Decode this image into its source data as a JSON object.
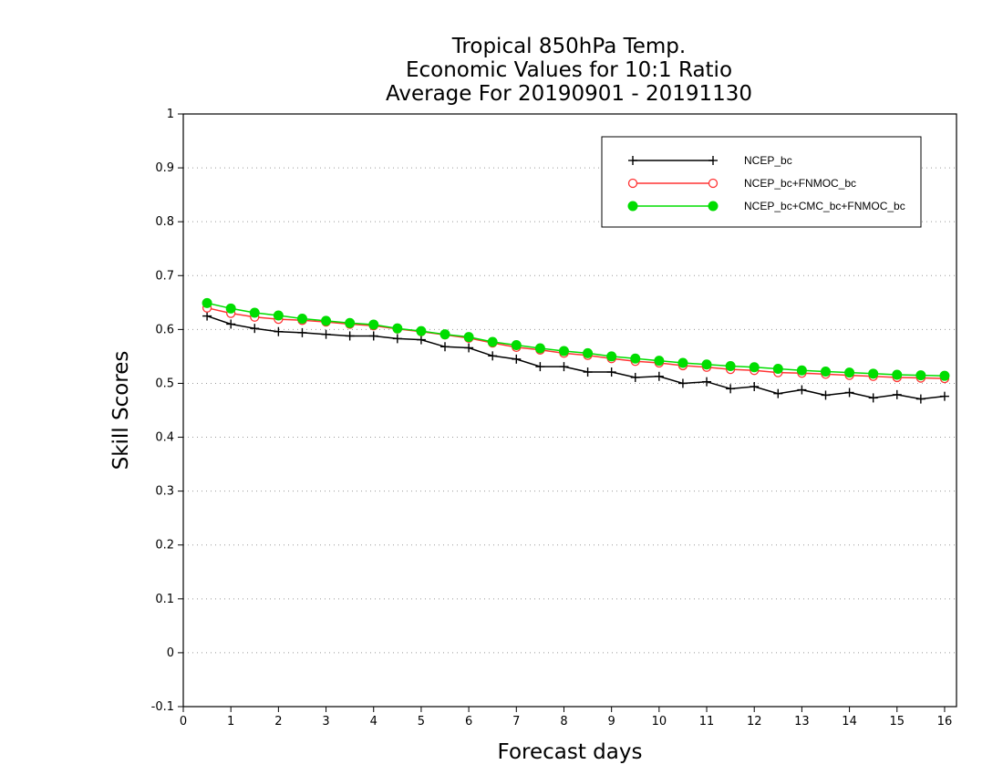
{
  "chart_data": {
    "type": "line",
    "title_lines": [
      "Tropical 850hPa Temp.",
      "Economic Values for 10:1 Ratio",
      "Average For 20190901 - 20191130"
    ],
    "xlabel": "Forecast days",
    "ylabel": "Skill Scores",
    "xlim": [
      0,
      16.25
    ],
    "ylim": [
      -0.1,
      1
    ],
    "x_ticks": [
      0,
      1,
      2,
      3,
      4,
      5,
      6,
      7,
      8,
      9,
      10,
      11,
      12,
      13,
      14,
      15,
      16
    ],
    "y_ticks": [
      -0.1,
      0,
      0.1,
      0.2,
      0.3,
      0.4,
      0.5,
      0.6,
      0.7,
      0.8,
      0.9,
      1
    ],
    "y_tick_labels": [
      "-0.1",
      "0",
      "0.1",
      "0.2",
      "0.3",
      "0.4",
      "0.5",
      "0.6",
      "0.7",
      "0.8",
      "0.9",
      "1"
    ],
    "grid": "horizontal-dotted",
    "legend_position": "top-right",
    "x": [
      0.5,
      1,
      1.5,
      2,
      2.5,
      3,
      3.5,
      4,
      4.5,
      5,
      5.5,
      6,
      6.5,
      7,
      7.5,
      8,
      8.5,
      9,
      9.5,
      10,
      10.5,
      11,
      11.5,
      12,
      12.5,
      13,
      13.5,
      14,
      14.5,
      15,
      15.5,
      16
    ],
    "series": [
      {
        "name": "NCEP_bc",
        "color": "#000000",
        "marker": "plus",
        "values": [
          0.625,
          0.61,
          0.602,
          0.596,
          0.594,
          0.591,
          0.588,
          0.588,
          0.583,
          0.581,
          0.568,
          0.566,
          0.551,
          0.545,
          0.531,
          0.531,
          0.521,
          0.521,
          0.511,
          0.513,
          0.5,
          0.503,
          0.49,
          0.494,
          0.481,
          0.488,
          0.478,
          0.483,
          0.473,
          0.479,
          0.471,
          0.476
        ]
      },
      {
        "name": "NCEP_bc+FNMOC_bc",
        "color": "#ff3333",
        "marker": "open-circle",
        "values": [
          0.64,
          0.63,
          0.623,
          0.619,
          0.617,
          0.614,
          0.61,
          0.607,
          0.601,
          0.596,
          0.59,
          0.584,
          0.575,
          0.567,
          0.562,
          0.556,
          0.552,
          0.546,
          0.541,
          0.538,
          0.533,
          0.53,
          0.526,
          0.524,
          0.52,
          0.519,
          0.517,
          0.515,
          0.513,
          0.511,
          0.51,
          0.509
        ]
      },
      {
        "name": "NCEP_bc+CMC_bc+FNMOC_bc",
        "color": "#00dd00",
        "marker": "filled-circle",
        "values": [
          0.649,
          0.639,
          0.631,
          0.626,
          0.62,
          0.616,
          0.612,
          0.609,
          0.602,
          0.597,
          0.591,
          0.586,
          0.577,
          0.571,
          0.565,
          0.56,
          0.556,
          0.55,
          0.546,
          0.542,
          0.538,
          0.535,
          0.532,
          0.53,
          0.527,
          0.524,
          0.522,
          0.52,
          0.518,
          0.516,
          0.515,
          0.514
        ]
      }
    ]
  }
}
